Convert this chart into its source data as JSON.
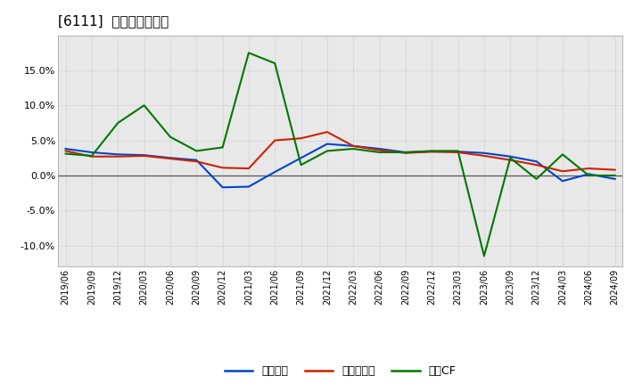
{
  "title": "[6111]  マージンの推移",
  "x_labels": [
    "2019/06",
    "2019/09",
    "2019/12",
    "2020/03",
    "2020/06",
    "2020/09",
    "2020/12",
    "2021/03",
    "2021/06",
    "2021/09",
    "2021/12",
    "2022/03",
    "2022/06",
    "2022/09",
    "2022/12",
    "2023/03",
    "2023/06",
    "2023/09",
    "2023/12",
    "2024/03",
    "2024/06",
    "2024/09"
  ],
  "operating_income": [
    3.8,
    3.3,
    3.0,
    2.9,
    2.5,
    2.2,
    -1.7,
    -1.6,
    0.5,
    2.5,
    4.5,
    4.2,
    3.8,
    3.3,
    3.4,
    3.4,
    3.2,
    2.7,
    2.0,
    -0.8,
    0.2,
    -0.5
  ],
  "net_income": [
    3.5,
    2.7,
    2.7,
    2.8,
    2.4,
    2.0,
    1.1,
    1.0,
    5.0,
    5.3,
    6.2,
    4.2,
    3.6,
    3.2,
    3.4,
    3.3,
    2.8,
    2.2,
    1.5,
    0.6,
    1.0,
    0.8
  ],
  "operating_cf": [
    3.1,
    2.8,
    7.5,
    10.0,
    5.5,
    3.5,
    4.0,
    17.5,
    16.0,
    1.5,
    3.5,
    3.8,
    3.3,
    3.3,
    3.5,
    3.5,
    -11.5,
    2.5,
    -0.5,
    3.0,
    0.0,
    0.0
  ],
  "operating_income_color": "#0044cc",
  "net_income_color": "#cc2200",
  "operating_cf_color": "#007700",
  "background_color": "#ffffff",
  "plot_bg_color": "#e8e8e8",
  "grid_color": "#bbbbbb",
  "zero_line_color": "#555555",
  "ylim": [
    -13,
    20
  ],
  "yticks": [
    -10.0,
    -5.0,
    0.0,
    5.0,
    10.0,
    15.0
  ],
  "legend_labels": [
    "経常利益",
    "当期純利益",
    "営業CF"
  ],
  "title_fontsize": 11,
  "tick_fontsize": 7,
  "legend_fontsize": 9
}
